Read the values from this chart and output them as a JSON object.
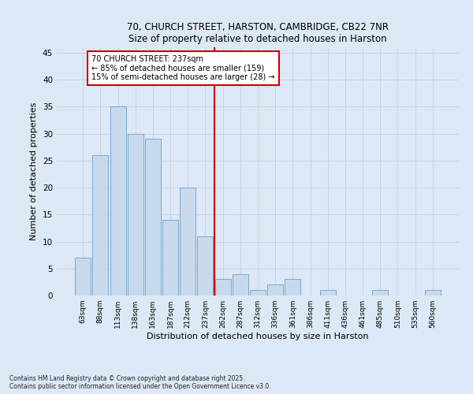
{
  "title1": "70, CHURCH STREET, HARSTON, CAMBRIDGE, CB22 7NR",
  "title2": "Size of property relative to detached houses in Harston",
  "xlabel": "Distribution of detached houses by size in Harston",
  "ylabel": "Number of detached properties",
  "categories": [
    "63sqm",
    "88sqm",
    "113sqm",
    "138sqm",
    "163sqm",
    "187sqm",
    "212sqm",
    "237sqm",
    "262sqm",
    "287sqm",
    "312sqm",
    "336sqm",
    "361sqm",
    "386sqm",
    "411sqm",
    "436sqm",
    "461sqm",
    "485sqm",
    "510sqm",
    "535sqm",
    "560sqm"
  ],
  "values": [
    7,
    26,
    35,
    30,
    29,
    14,
    20,
    11,
    3,
    4,
    1,
    2,
    3,
    0,
    1,
    0,
    0,
    1,
    0,
    0,
    1
  ],
  "bar_color": "#c9d9ed",
  "bar_edge_color": "#6a9fc8",
  "highlight_index": 7,
  "vline_color": "#cc0000",
  "annotation_line1": "70 CHURCH STREET: 237sqm",
  "annotation_line2": "← 85% of detached houses are smaller (159)",
  "annotation_line3": "15% of semi-detached houses are larger (28) →",
  "annotation_box_color": "#ffffff",
  "annotation_box_edge": "#cc0000",
  "ylim": [
    0,
    46
  ],
  "yticks": [
    0,
    5,
    10,
    15,
    20,
    25,
    30,
    35,
    40,
    45
  ],
  "grid_color": "#c8d4e3",
  "background_color": "#dce8f5",
  "footer": "Contains HM Land Registry data © Crown copyright and database right 2025.\nContains public sector information licensed under the Open Government Licence v3.0."
}
